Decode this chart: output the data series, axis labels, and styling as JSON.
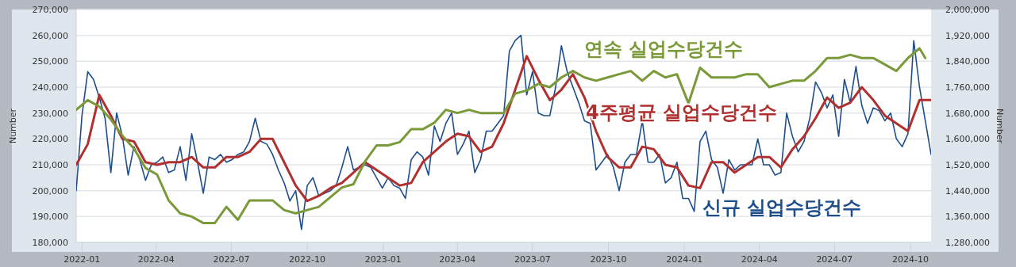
{
  "chart_data": {
    "type": "line",
    "ylabel": "Number",
    "y2label": "Number",
    "x": [
      "2021-12-25",
      "2022-01-01",
      "2022-01-08",
      "2022-01-15",
      "2022-01-22",
      "2022-01-29",
      "2022-02-05",
      "2022-02-12",
      "2022-02-19",
      "2022-02-26",
      "2022-03-05",
      "2022-03-12",
      "2022-03-19",
      "2022-03-26",
      "2022-04-02",
      "2022-04-09",
      "2022-04-16",
      "2022-04-23",
      "2022-04-30",
      "2022-05-07",
      "2022-05-14",
      "2022-05-21",
      "2022-05-28",
      "2022-06-04",
      "2022-06-11",
      "2022-06-18",
      "2022-06-25",
      "2022-07-02",
      "2022-07-09",
      "2022-07-16",
      "2022-07-23",
      "2022-07-30",
      "2022-08-06",
      "2022-08-13",
      "2022-08-20",
      "2022-08-27",
      "2022-09-03",
      "2022-09-10",
      "2022-09-17",
      "2022-09-24",
      "2022-10-01",
      "2022-10-08",
      "2022-10-15",
      "2022-10-22",
      "2022-10-29",
      "2022-11-05",
      "2022-11-12",
      "2022-11-19",
      "2022-11-26",
      "2022-12-03",
      "2022-12-10",
      "2022-12-17",
      "2022-12-24",
      "2022-12-31",
      "2023-01-07",
      "2023-01-14",
      "2023-01-21",
      "2023-01-28",
      "2023-02-04",
      "2023-02-11",
      "2023-02-18",
      "2023-02-25",
      "2023-03-04",
      "2023-03-11",
      "2023-03-18",
      "2023-03-25",
      "2023-04-01",
      "2023-04-08",
      "2023-04-15",
      "2023-04-22",
      "2023-04-29",
      "2023-05-06",
      "2023-05-13",
      "2023-05-20",
      "2023-05-27",
      "2023-06-03",
      "2023-06-10",
      "2023-06-17",
      "2023-06-24",
      "2023-07-01",
      "2023-07-08",
      "2023-07-15",
      "2023-07-22",
      "2023-07-29",
      "2023-08-05",
      "2023-08-12",
      "2023-08-19",
      "2023-08-26",
      "2023-09-02",
      "2023-09-09",
      "2023-09-16",
      "2023-09-23",
      "2023-09-30",
      "2023-10-07",
      "2023-10-14",
      "2023-10-21",
      "2023-10-28",
      "2023-11-04",
      "2023-11-11",
      "2023-11-18",
      "2023-11-25",
      "2023-12-02",
      "2023-12-09",
      "2023-12-16",
      "2023-12-23",
      "2023-12-30",
      "2024-01-06",
      "2024-01-13",
      "2024-01-20",
      "2024-01-27",
      "2024-02-03",
      "2024-02-10",
      "2024-02-17",
      "2024-02-24",
      "2024-03-02",
      "2024-03-09",
      "2024-03-16",
      "2024-03-23",
      "2024-03-30",
      "2024-04-06",
      "2024-04-13",
      "2024-04-20",
      "2024-04-27",
      "2024-05-04",
      "2024-05-11",
      "2024-05-18",
      "2024-05-25",
      "2024-06-01",
      "2024-06-08",
      "2024-06-15",
      "2024-06-22",
      "2024-06-29",
      "2024-07-06",
      "2024-07-13",
      "2024-07-20",
      "2024-07-27",
      "2024-08-03",
      "2024-08-10",
      "2024-08-17",
      "2024-08-24",
      "2024-08-31",
      "2024-09-07",
      "2024-09-14",
      "2024-09-21",
      "2024-09-28",
      "2024-10-05",
      "2024-10-12",
      "2024-10-19",
      "2024-10-26"
    ],
    "xlim": [
      "2021-12-25",
      "2024-10-26"
    ],
    "xticks": [
      "2022-01",
      "2022-04",
      "2022-07",
      "2022-10",
      "2023-01",
      "2023-04",
      "2023-07",
      "2023-10",
      "2024-01",
      "2024-04",
      "2024-07",
      "2024-10"
    ],
    "ylim": [
      180000,
      270000
    ],
    "yticks": [
      {
        "value": 180000,
        "label": "180,000"
      },
      {
        "value": 190000,
        "label": "190,000"
      },
      {
        "value": 200000,
        "label": "200,000"
      },
      {
        "value": 210000,
        "label": "210,000"
      },
      {
        "value": 220000,
        "label": "220,000"
      },
      {
        "value": 230000,
        "label": "230,000"
      },
      {
        "value": 240000,
        "label": "240,000"
      },
      {
        "value": 250000,
        "label": "250,000"
      },
      {
        "value": 260000,
        "label": "260,000"
      },
      {
        "value": 270000,
        "label": "270,000"
      }
    ],
    "y2lim": [
      1280000,
      2000000
    ],
    "y2ticks": [
      {
        "value": 1280000,
        "label": "1,280,000"
      },
      {
        "value": 1360000,
        "label": "1,360,000"
      },
      {
        "value": 1440000,
        "label": "1,440,000"
      },
      {
        "value": 1520000,
        "label": "1,520,000"
      },
      {
        "value": 1600000,
        "label": "1,600,000"
      },
      {
        "value": 1680000,
        "label": "1,680,000"
      },
      {
        "value": 1760000,
        "label": "1,760,000"
      },
      {
        "value": 1840000,
        "label": "1,840,000"
      },
      {
        "value": 1920000,
        "label": "1,920,000"
      },
      {
        "value": 2000000,
        "label": "2,000,000"
      }
    ],
    "grid": "y",
    "series": [
      {
        "name": "신규 실업수당건수",
        "color": "#1f4e8c",
        "values": [
          200000,
          229000,
          246000,
          243000,
          236000,
          228000,
          207000,
          230000,
          221000,
          206000,
          217000,
          212000,
          204000,
          210000,
          211000,
          213000,
          207000,
          208000,
          217000,
          204000,
          222000,
          211000,
          199000,
          213000,
          212000,
          214000,
          211000,
          212000,
          214000,
          215000,
          219000,
          228000,
          219000,
          218000,
          214000,
          208000,
          203000,
          196000,
          200000,
          185000,
          202000,
          205000,
          198000,
          199000,
          200000,
          202000,
          209000,
          217000,
          208000,
          209000,
          210000,
          209000,
          205000,
          201000,
          205000,
          202000,
          201000,
          197000,
          212000,
          215000,
          213000,
          206000,
          225000,
          219000,
          226000,
          230000,
          214000,
          218000,
          223000,
          207000,
          212000,
          223000,
          223000,
          226000,
          229000,
          254000,
          258000,
          260000,
          237000,
          246000,
          230000,
          229000,
          229000,
          240000,
          256000,
          246000,
          240000,
          234000,
          227000,
          226000,
          208000,
          211000,
          214000,
          209000,
          200000,
          211000,
          214000,
          214000,
          227000,
          211000,
          211000,
          214000,
          203000,
          205000,
          211000,
          197000,
          197000,
          192000,
          219000,
          223000,
          212000,
          209000,
          199000,
          212000,
          208000,
          210000,
          210000,
          210000,
          220000,
          210000,
          210000,
          206000,
          207000,
          230000,
          221000,
          215000,
          219000,
          228000,
          242000,
          238000,
          232000,
          237000,
          221000,
          243000,
          234000,
          248000,
          233000,
          226000,
          232000,
          231000,
          227000,
          230000,
          220000,
          217000,
          222000,
          258000,
          240000,
          227000,
          214000
        ]
      },
      {
        "name": "4주평균 실업수당건수",
        "color": "#b03030",
        "x": [
          "2021-12-25",
          "2022-01-08",
          "2022-01-22",
          "2022-02-05",
          "2022-02-19",
          "2022-03-05",
          "2022-03-19",
          "2022-04-02",
          "2022-04-16",
          "2022-04-30",
          "2022-05-14",
          "2022-05-28",
          "2022-06-11",
          "2022-06-25",
          "2022-07-09",
          "2022-07-23",
          "2022-08-06",
          "2022-08-20",
          "2022-09-03",
          "2022-09-17",
          "2022-10-01",
          "2022-10-15",
          "2022-10-29",
          "2022-11-12",
          "2022-11-26",
          "2022-12-10",
          "2022-12-24",
          "2023-01-07",
          "2023-01-21",
          "2023-02-04",
          "2023-02-18",
          "2023-03-04",
          "2023-03-18",
          "2023-04-01",
          "2023-04-15",
          "2023-04-29",
          "2023-05-13",
          "2023-05-27",
          "2023-06-10",
          "2023-06-24",
          "2023-07-08",
          "2023-07-22",
          "2023-08-05",
          "2023-08-19",
          "2023-09-02",
          "2023-09-16",
          "2023-09-30",
          "2023-10-14",
          "2023-10-28",
          "2023-11-11",
          "2023-11-25",
          "2023-12-09",
          "2023-12-23",
          "2024-01-06",
          "2024-01-20",
          "2024-02-03",
          "2024-02-17",
          "2024-03-02",
          "2024-03-16",
          "2024-03-30",
          "2024-04-13",
          "2024-04-27",
          "2024-05-11",
          "2024-05-25",
          "2024-06-08",
          "2024-06-22",
          "2024-07-06",
          "2024-07-20",
          "2024-08-03",
          "2024-08-17",
          "2024-08-31",
          "2024-09-14",
          "2024-09-28",
          "2024-10-12",
          "2024-10-26"
        ],
        "values": [
          210000,
          218000,
          237000,
          229000,
          220000,
          219000,
          211000,
          210000,
          211000,
          211000,
          213000,
          209000,
          209000,
          213000,
          213000,
          215000,
          220000,
          220000,
          211000,
          202000,
          196000,
          198000,
          201000,
          203000,
          207000,
          211000,
          208000,
          205000,
          202000,
          203000,
          211000,
          215000,
          219000,
          222000,
          221000,
          215000,
          217000,
          226000,
          239000,
          252000,
          243000,
          235000,
          239000,
          245000,
          236000,
          223000,
          213000,
          209000,
          209000,
          217000,
          216000,
          210000,
          209000,
          202000,
          201000,
          211000,
          211000,
          207000,
          210000,
          213000,
          213000,
          209000,
          216000,
          221000,
          228000,
          236000,
          232000,
          234000,
          240000,
          235000,
          229000,
          226000,
          223000,
          235000,
          235000
        ]
      },
      {
        "name": "연속 실업수당건수",
        "color": "#7a9a3a",
        "axis": "y2",
        "x": [
          "2021-12-25",
          "2022-01-08",
          "2022-01-22",
          "2022-02-05",
          "2022-02-19",
          "2022-03-05",
          "2022-03-19",
          "2022-04-02",
          "2022-04-16",
          "2022-04-30",
          "2022-05-14",
          "2022-05-28",
          "2022-06-11",
          "2022-06-25",
          "2022-07-09",
          "2022-07-23",
          "2022-08-06",
          "2022-08-20",
          "2022-09-03",
          "2022-09-17",
          "2022-10-01",
          "2022-10-15",
          "2022-10-29",
          "2022-11-12",
          "2022-11-26",
          "2022-12-10",
          "2022-12-24",
          "2023-01-07",
          "2023-01-21",
          "2023-02-04",
          "2023-02-18",
          "2023-03-04",
          "2023-03-18",
          "2023-04-01",
          "2023-04-15",
          "2023-04-29",
          "2023-05-13",
          "2023-05-27",
          "2023-06-10",
          "2023-06-24",
          "2023-07-08",
          "2023-07-22",
          "2023-08-05",
          "2023-08-19",
          "2023-09-02",
          "2023-09-16",
          "2023-09-30",
          "2023-10-14",
          "2023-10-28",
          "2023-11-11",
          "2023-11-25",
          "2023-12-09",
          "2023-12-23",
          "2024-01-06",
          "2024-01-20",
          "2024-02-03",
          "2024-02-17",
          "2024-03-02",
          "2024-03-16",
          "2024-03-30",
          "2024-04-13",
          "2024-04-27",
          "2024-05-11",
          "2024-05-25",
          "2024-06-08",
          "2024-06-22",
          "2024-07-06",
          "2024-07-20",
          "2024-08-03",
          "2024-08-17",
          "2024-08-31",
          "2024-09-14",
          "2024-09-28",
          "2024-10-12",
          "2024-10-19"
        ],
        "values": [
          1690000,
          1720000,
          1700000,
          1660000,
          1610000,
          1570000,
          1510000,
          1490000,
          1410000,
          1370000,
          1360000,
          1340000,
          1340000,
          1390000,
          1350000,
          1410000,
          1410000,
          1410000,
          1380000,
          1370000,
          1380000,
          1390000,
          1420000,
          1450000,
          1460000,
          1530000,
          1580000,
          1580000,
          1590000,
          1630000,
          1630000,
          1650000,
          1690000,
          1680000,
          1690000,
          1680000,
          1680000,
          1680000,
          1740000,
          1750000,
          1770000,
          1760000,
          1790000,
          1810000,
          1790000,
          1780000,
          1790000,
          1800000,
          1810000,
          1780000,
          1810000,
          1790000,
          1800000,
          1710000,
          1820000,
          1790000,
          1790000,
          1790000,
          1800000,
          1800000,
          1760000,
          1770000,
          1780000,
          1780000,
          1810000,
          1850000,
          1850000,
          1860000,
          1850000,
          1850000,
          1830000,
          1810000,
          1850000,
          1880000,
          1850000
        ]
      }
    ]
  }
}
